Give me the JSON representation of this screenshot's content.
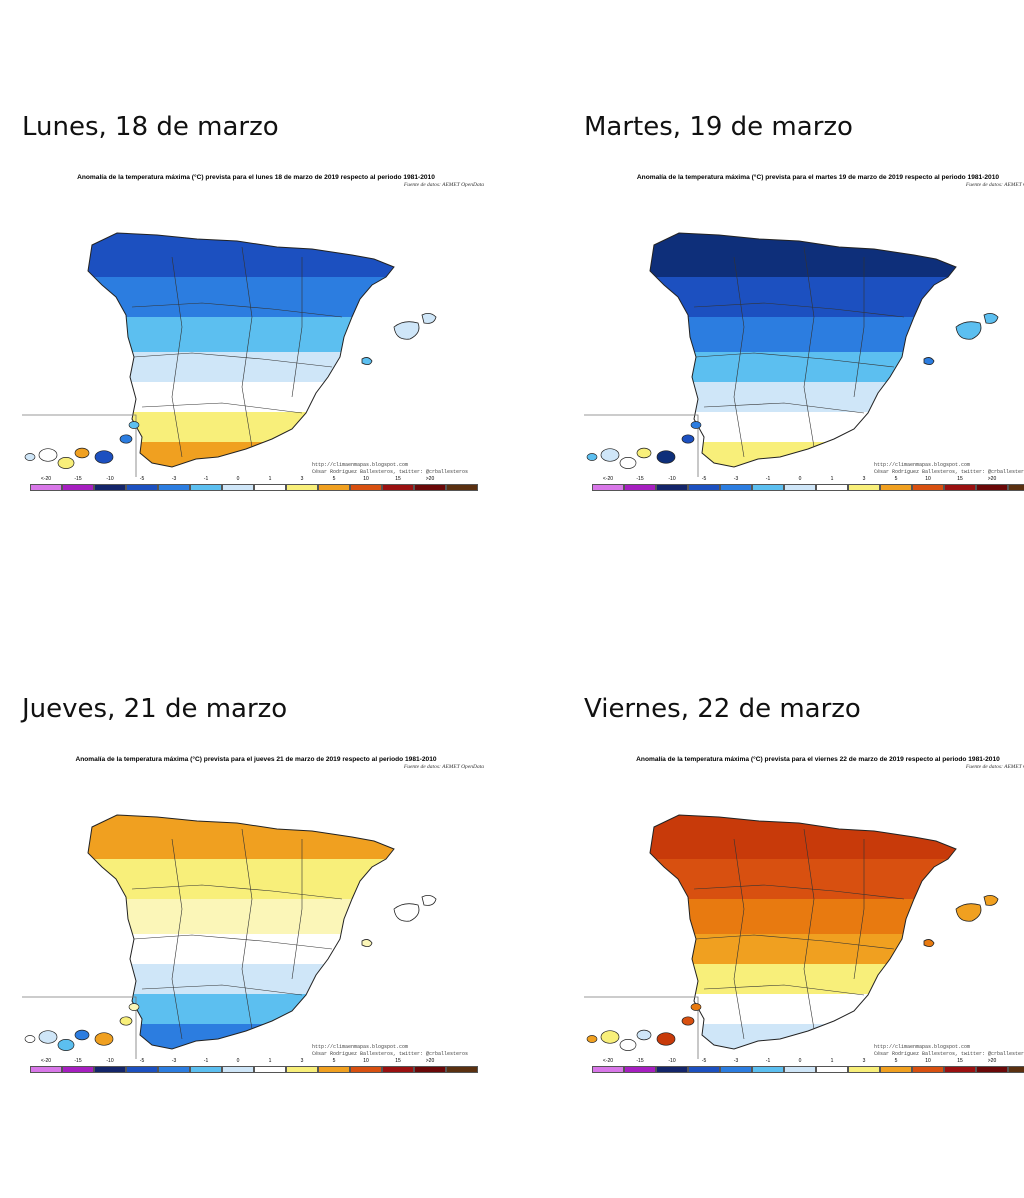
{
  "panels": [
    {
      "heading": "Lunes, 18 de marzo",
      "map_title": "Anomalía de la temperatura máxima (°C) prevista para el lunes 18 de marzo de 2019 respecto al periodo 1981-2010",
      "source": "Fuente de datos: AEMET OpenData",
      "credit_url": "http://climaenmapas.blogspot.com",
      "credit_author": "César Rodríguez Ballesteros, twitter: @crballesteros",
      "palette": [
        "#1c50c0",
        "#2c7de0",
        "#5cbff0",
        "#cfe6f8",
        "#ffffff",
        "#f8ef7a",
        "#f0a020"
      ],
      "zones": [
        0,
        1,
        2,
        3,
        4,
        5,
        6
      ]
    },
    {
      "heading": "Martes, 19 de marzo",
      "map_title": "Anomalía de la temperatura máxima (°C) prevista para el martes 19 de marzo de 2019 respecto al periodo 1981-2010",
      "source": "Fuente de datos: AEMET OpenData",
      "credit_url": "http://climaenmapas.blogspot.com",
      "credit_author": "César Rodríguez Ballesteros, twitter: @crballesteros",
      "palette": [
        "#0e2f7a",
        "#1c50c0",
        "#2c7de0",
        "#5cbff0",
        "#cfe6f8",
        "#ffffff",
        "#f8ef7a"
      ],
      "zones": [
        0,
        1,
        2,
        3,
        4,
        5,
        6
      ]
    },
    {
      "heading": "Jueves, 21 de marzo",
      "map_title": "Anomalía de la temperatura máxima (°C) prevista para el jueves 21 de marzo de 2019 respecto al periodo 1981-2010",
      "source": "Fuente de datos: AEMET OpenData",
      "credit_url": "http://climaenmapas.blogspot.com",
      "credit_author": "César Rodríguez Ballesteros, twitter: @crballesteros",
      "palette": [
        "#f0a020",
        "#f8ef7a",
        "#fbf6b8",
        "#ffffff",
        "#cfe6f8",
        "#5cbff0",
        "#2c7de0"
      ],
      "zones": [
        0,
        1,
        2,
        3,
        4,
        5,
        6
      ]
    },
    {
      "heading": "Viernes, 22 de marzo",
      "map_title": "Anomalía de la temperatura máxima (°C) prevista para el viernes 22 de marzo de 2019 respecto al periodo 1981-2010",
      "source": "Fuente de datos: AEMET OpenData",
      "credit_url": "http://climaenmapas.blogspot.com",
      "credit_author": "César Rodríguez Ballesteros, twitter: @crballesteros",
      "palette": [
        "#c83a0a",
        "#d85010",
        "#e87a10",
        "#f0a020",
        "#f8ef7a",
        "#ffffff",
        "#cfe6f8"
      ],
      "zones": [
        0,
        1,
        2,
        3,
        4,
        5,
        6
      ]
    }
  ],
  "legend": {
    "colors": [
      "#d877e8",
      "#a61fc0",
      "#14256a",
      "#1c50c0",
      "#2c7de0",
      "#5cbff0",
      "#cfe6f8",
      "#ffffff",
      "#f8ef7a",
      "#f0a020",
      "#d85010",
      "#9a1010",
      "#6a0808",
      "#5a3010"
    ],
    "labels": [
      "<-20",
      "-15",
      "-10",
      "-5",
      "-3",
      "-1",
      "0",
      "1",
      "3",
      "5",
      "10",
      "15",
      ">20"
    ]
  }
}
